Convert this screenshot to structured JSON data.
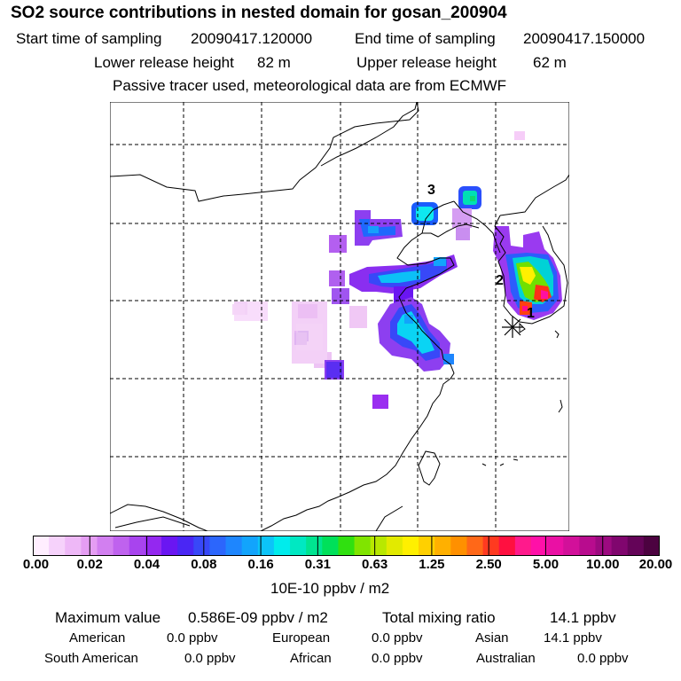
{
  "header": {
    "title": "SO2 source contributions in nested domain for gosan_200904",
    "start_label": "Start time of sampling",
    "start_value": "20090417.120000",
    "end_label": "End time of sampling",
    "end_value": "20090417.150000",
    "lower_label": "Lower release height",
    "lower_value": "82 m",
    "upper_label": "Upper release height",
    "upper_value": "62 m",
    "note": "Passive tracer used, meteorological data are from ECMWF"
  },
  "map": {
    "markers": [
      {
        "label": "1"
      },
      {
        "label": "2"
      },
      {
        "label": "3"
      }
    ],
    "colors": {
      "coast": "#000000",
      "grid": "#000000"
    }
  },
  "colorbar": {
    "tick_labels": [
      "0.00",
      "0.02",
      "0.04",
      "0.08",
      "0.16",
      "0.31",
      "0.63",
      "1.25",
      "2.50",
      "5.00",
      "10.00",
      "20.00"
    ],
    "colors": [
      "#ffeeff",
      "#f6d2fb",
      "#eeb8f7",
      "#e59df3",
      "#d27ff0",
      "#bf62ee",
      "#a844ee",
      "#9428f0",
      "#6a16f2",
      "#4a26f4",
      "#3848f8",
      "#2c66fc",
      "#1e86fe",
      "#12a4fc",
      "#0cc4f8",
      "#00ecec",
      "#00e8c2",
      "#00e490",
      "#00e05a",
      "#30e010",
      "#80e400",
      "#b8e800",
      "#e2ea00",
      "#fff000",
      "#ffd000",
      "#ffb000",
      "#ff9000",
      "#ff6818",
      "#ff3a20",
      "#ff1040",
      "#ff1a8c",
      "#ff10a8",
      "#ea10a4",
      "#d2109a",
      "#b80c8e",
      "#9c0a80",
      "#80066e",
      "#640458",
      "#4c0240"
    ],
    "unit": "10E-10 ppbv / m2"
  },
  "stats": {
    "max_label": "Maximum value",
    "max_value": "0.586E-09 ppbv / m2",
    "total_label": "Total mixing ratio",
    "total_value": "14.1 ppbv",
    "regions": [
      {
        "name": "American",
        "value": "0.0 ppbv"
      },
      {
        "name": "European",
        "value": "0.0 ppbv"
      },
      {
        "name": "Asian",
        "value": "14.1 ppbv"
      },
      {
        "name": "South American",
        "value": "0.0 ppbv"
      },
      {
        "name": "African",
        "value": "0.0 ppbv"
      },
      {
        "name": "Australian",
        "value": "0.0 ppbv"
      }
    ]
  }
}
